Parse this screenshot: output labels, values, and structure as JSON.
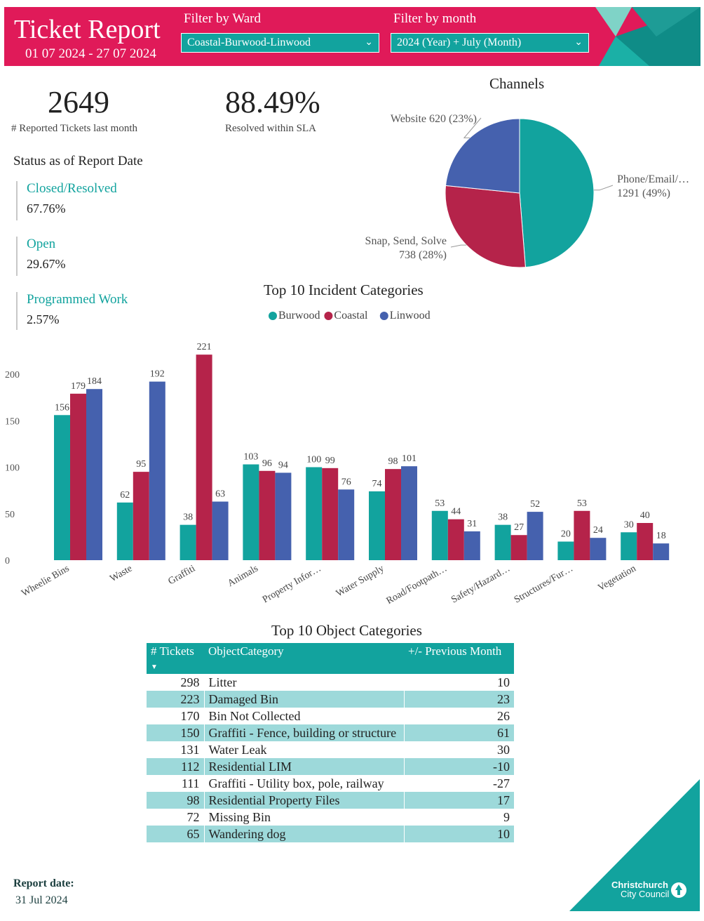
{
  "header": {
    "title": "Ticket Report",
    "date_range": "01 07 2024 - 27 07 2024",
    "filter_ward_label": "Filter by Ward",
    "filter_ward_value": "Coastal-Burwood-Linwood",
    "filter_month_label": "Filter by month",
    "filter_month_value": "2024 (Year) + July (Month)"
  },
  "kpis": {
    "tickets_value": "2649",
    "tickets_label": "# Reported Tickets last month",
    "sla_value": "88.49%",
    "sla_label": "Resolved within SLA"
  },
  "status": {
    "heading": "Status as of Report Date",
    "items": [
      {
        "label": "Closed/Resolved",
        "value": "67.76%"
      },
      {
        "label": "Open",
        "value": "29.67%"
      },
      {
        "label": "Programmed Work",
        "value": "2.57%"
      }
    ]
  },
  "footer": {
    "report_date_label": "Report date:",
    "report_date_value": "31 Jul 2024",
    "logo_line1": "Christchurch",
    "logo_line2": "City Council"
  },
  "colors": {
    "brand_pink": "#e01a59",
    "teal": "#12a39e",
    "crimson": "#b5234a",
    "blue": "#4561ae",
    "row_alt": "#9dd9da"
  },
  "chart_data": [
    {
      "type": "pie",
      "title": "Channels",
      "slices": [
        {
          "name": "Phone/Email/…",
          "value": 1291,
          "percent": "49%",
          "color": "#12a39e"
        },
        {
          "name": "Snap, Send, Solve",
          "value": 738,
          "percent": "28%",
          "color": "#b5234a"
        },
        {
          "name": "Website",
          "value": 620,
          "percent": "23%",
          "color": "#4561ae"
        }
      ]
    },
    {
      "type": "bar",
      "title": "Top 10 Incident Categories",
      "categories": [
        "Wheelie Bins",
        "Waste",
        "Graffiti",
        "Animals",
        "Property Infor…",
        "Water Supply",
        "Road/Footpath…",
        "Safety/Hazard…",
        "Structures/Fur…",
        "Vegetation"
      ],
      "series": [
        {
          "name": "Burwood",
          "color": "#12a39e",
          "values": [
            156,
            62,
            38,
            103,
            100,
            74,
            53,
            38,
            20,
            30
          ]
        },
        {
          "name": "Coastal",
          "color": "#b5234a",
          "values": [
            179,
            95,
            221,
            96,
            99,
            98,
            44,
            27,
            53,
            40
          ]
        },
        {
          "name": "Linwood",
          "color": "#4561ae",
          "values": [
            184,
            192,
            63,
            94,
            76,
            101,
            31,
            52,
            24,
            18
          ]
        }
      ],
      "yticks": [
        0,
        50,
        100,
        150,
        200
      ],
      "ylim": [
        0,
        230
      ],
      "legend": "top-center",
      "grid": false
    },
    {
      "type": "table",
      "title": "Top 10 Object Categories",
      "columns": [
        "# Tickets",
        "ObjectCategory",
        "+/- Previous Month"
      ],
      "rows": [
        [
          "298",
          "Litter",
          "10"
        ],
        [
          "223",
          "Damaged Bin",
          "23"
        ],
        [
          "170",
          "Bin Not Collected",
          "26"
        ],
        [
          "150",
          "Graffiti - Fence, building or structure",
          "61"
        ],
        [
          "131",
          "Water Leak",
          "30"
        ],
        [
          "112",
          "Residential LIM",
          "-10"
        ],
        [
          "111",
          "Graffiti - Utility box, pole, railway",
          "-27"
        ],
        [
          "98",
          "Residential Property Files",
          "17"
        ],
        [
          "72",
          "Missing Bin",
          "9"
        ],
        [
          "65",
          "Wandering dog",
          "10"
        ]
      ]
    }
  ]
}
